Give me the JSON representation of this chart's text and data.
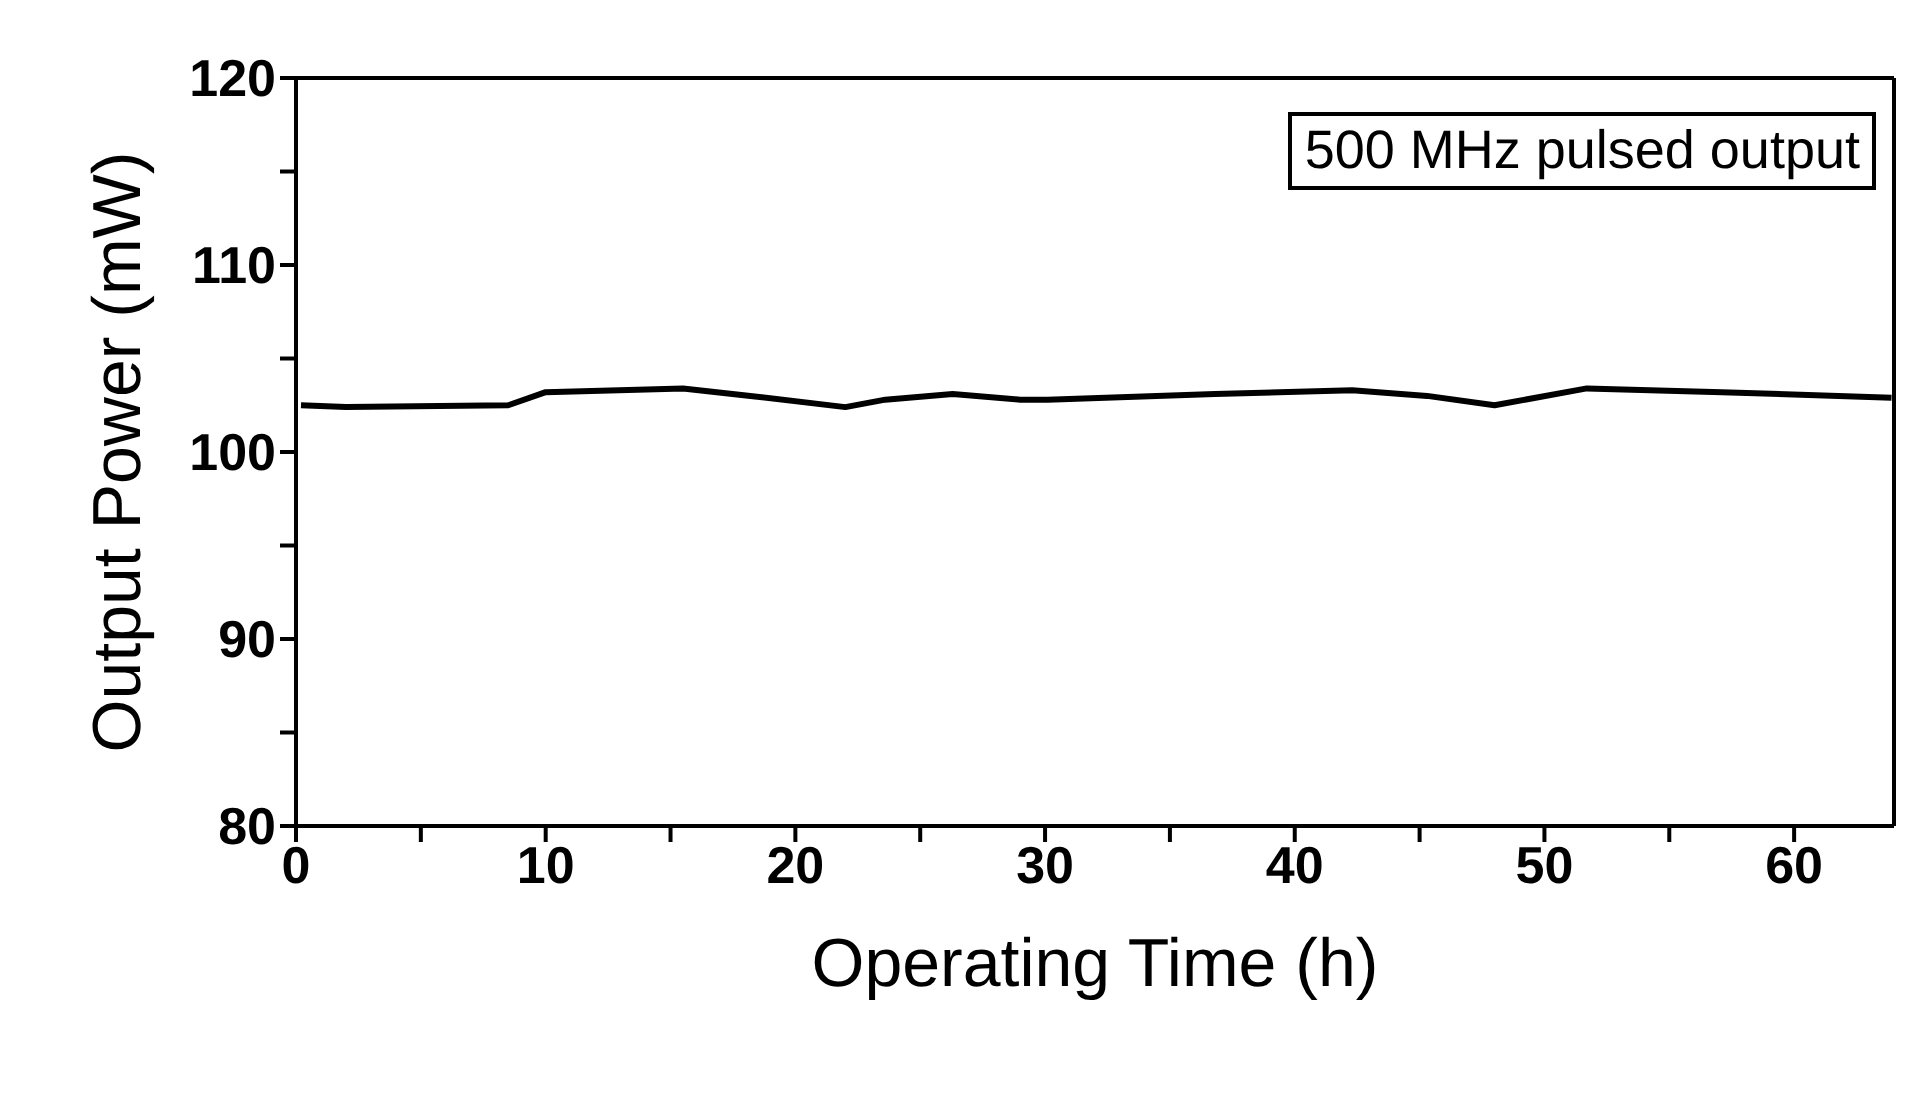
{
  "chart_data": {
    "type": "line",
    "xlabel": "Operating Time (h)",
    "ylabel": "Output Power (mW)",
    "annotations": [
      "500 MHz pulsed output"
    ],
    "x": [
      0.2,
      2,
      8.5,
      10,
      15.5,
      18.2,
      22,
      23.6,
      26.3,
      29,
      30.1,
      36.8,
      42.3,
      45.3,
      48,
      51.7,
      57.1,
      63.9
    ],
    "series": [
      {
        "color": "#000000",
        "values": [
          102.5,
          102.4,
          102.5,
          103.2,
          103.4,
          103.0,
          102.4,
          102.8,
          103.1,
          102.8,
          102.8,
          103.1,
          103.3,
          103.0,
          102.5,
          103.4,
          103.2,
          102.9
        ]
      }
    ],
    "xlim": [
      0,
      64
    ],
    "xticks": [
      0,
      {
        "value": 5,
        "label": null
      },
      10,
      {
        "value": 15,
        "label": null
      },
      20,
      {
        "value": 25,
        "label": null
      },
      30,
      {
        "value": 35,
        "label": null
      },
      40,
      {
        "value": 45,
        "label": null
      },
      50,
      {
        "value": 55,
        "label": null
      },
      60
    ],
    "ylim": [
      80,
      120
    ],
    "yticks": [
      80,
      {
        "value": 85,
        "label": null
      },
      90,
      {
        "value": 95,
        "label": null
      },
      100,
      {
        "value": 105,
        "label": null
      },
      110,
      {
        "value": 115,
        "label": null
      },
      120
    ],
    "grid": false,
    "legend": false,
    "marker": "none",
    "line_style": "solid"
  }
}
